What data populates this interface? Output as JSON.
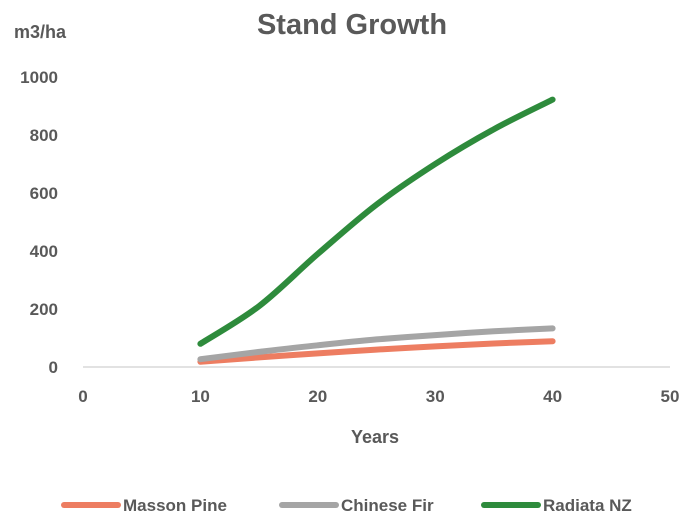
{
  "chart_data": {
    "type": "line",
    "title": "Stand Growth",
    "xlabel": "Years",
    "ylabel": "m3/ha",
    "xlim": [
      0,
      50
    ],
    "ylim": [
      0,
      1000
    ],
    "xticks": [
      0,
      10,
      20,
      30,
      40,
      50
    ],
    "yticks": [
      0,
      200,
      400,
      600,
      800,
      1000
    ],
    "grid": false,
    "legend": "bottom",
    "series": [
      {
        "name": "Masson Pine",
        "color": "#ed7d61",
        "x": [
          10,
          15,
          20,
          25,
          30,
          35,
          40
        ],
        "y": [
          18,
          33,
          47,
          60,
          71,
          81,
          89
        ]
      },
      {
        "name": "Chinese Fir",
        "color": "#a5a5a5",
        "x": [
          10,
          15,
          20,
          25,
          30,
          35,
          40
        ],
        "y": [
          27,
          52,
          75,
          95,
          110,
          123,
          133
        ]
      },
      {
        "name": "Radiata NZ",
        "color": "#2e8b3c",
        "x": [
          10,
          15,
          20,
          25,
          30,
          35,
          40
        ],
        "y": [
          80,
          210,
          390,
          560,
          700,
          820,
          922
        ]
      }
    ]
  }
}
